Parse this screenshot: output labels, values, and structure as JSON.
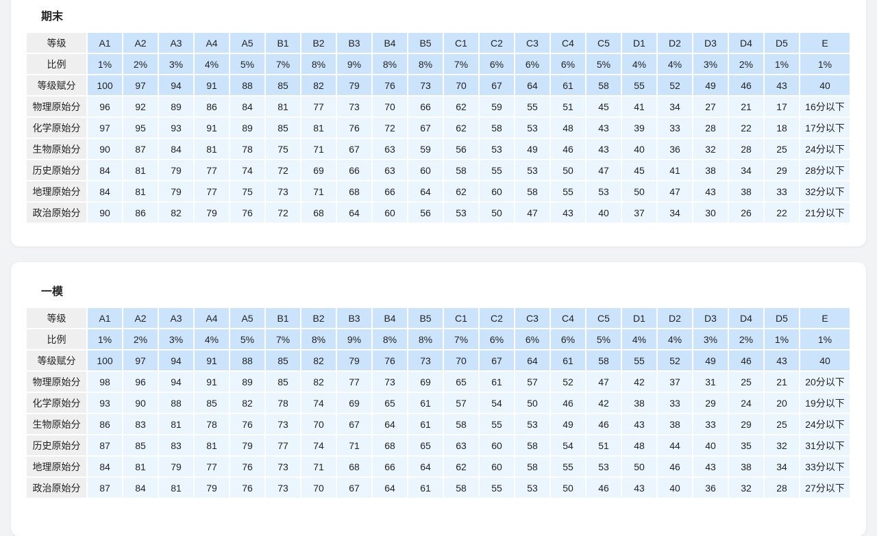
{
  "tables": [
    {
      "title": "期末",
      "header_rows": [
        {
          "label": "等级",
          "cells": [
            "A1",
            "A2",
            "A3",
            "A4",
            "A5",
            "B1",
            "B2",
            "B3",
            "B4",
            "B5",
            "C1",
            "C2",
            "C3",
            "C4",
            "C5",
            "D1",
            "D2",
            "D3",
            "D4",
            "D5",
            "E"
          ]
        },
        {
          "label": "比例",
          "cells": [
            "1%",
            "2%",
            "3%",
            "4%",
            "5%",
            "7%",
            "8%",
            "9%",
            "8%",
            "8%",
            "7%",
            "6%",
            "6%",
            "6%",
            "5%",
            "4%",
            "4%",
            "3%",
            "2%",
            "1%",
            "1%"
          ]
        },
        {
          "label": "等级赋分",
          "cells": [
            "100",
            "97",
            "94",
            "91",
            "88",
            "85",
            "82",
            "79",
            "76",
            "73",
            "70",
            "67",
            "64",
            "61",
            "58",
            "55",
            "52",
            "49",
            "46",
            "43",
            "40"
          ]
        }
      ],
      "rows": [
        {
          "label": "物理原始分",
          "cells": [
            "96",
            "92",
            "89",
            "86",
            "84",
            "81",
            "77",
            "73",
            "70",
            "66",
            "62",
            "59",
            "55",
            "51",
            "45",
            "41",
            "34",
            "27",
            "21",
            "17",
            "16分以下"
          ]
        },
        {
          "label": "化学原始分",
          "cells": [
            "97",
            "95",
            "93",
            "91",
            "89",
            "85",
            "81",
            "76",
            "72",
            "67",
            "62",
            "58",
            "53",
            "48",
            "43",
            "39",
            "33",
            "28",
            "22",
            "18",
            "17分以下"
          ]
        },
        {
          "label": "生物原始分",
          "cells": [
            "90",
            "87",
            "84",
            "81",
            "78",
            "75",
            "71",
            "67",
            "63",
            "59",
            "56",
            "53",
            "49",
            "46",
            "43",
            "40",
            "36",
            "32",
            "28",
            "25",
            "24分以下"
          ]
        },
        {
          "label": "历史原始分",
          "cells": [
            "84",
            "81",
            "79",
            "77",
            "74",
            "72",
            "69",
            "66",
            "63",
            "60",
            "58",
            "55",
            "53",
            "50",
            "47",
            "45",
            "41",
            "38",
            "34",
            "29",
            "28分以下"
          ]
        },
        {
          "label": "地理原始分",
          "cells": [
            "84",
            "81",
            "79",
            "77",
            "75",
            "73",
            "71",
            "68",
            "66",
            "64",
            "62",
            "60",
            "58",
            "55",
            "53",
            "50",
            "47",
            "43",
            "38",
            "33",
            "32分以下"
          ]
        },
        {
          "label": "政治原始分",
          "cells": [
            "90",
            "86",
            "82",
            "79",
            "76",
            "72",
            "68",
            "64",
            "60",
            "56",
            "53",
            "50",
            "47",
            "43",
            "40",
            "37",
            "34",
            "30",
            "26",
            "22",
            "21分以下"
          ]
        }
      ]
    },
    {
      "title": "一模",
      "header_rows": [
        {
          "label": "等级",
          "cells": [
            "A1",
            "A2",
            "A3",
            "A4",
            "A5",
            "B1",
            "B2",
            "B3",
            "B4",
            "B5",
            "C1",
            "C2",
            "C3",
            "C4",
            "C5",
            "D1",
            "D2",
            "D3",
            "D4",
            "D5",
            "E"
          ]
        },
        {
          "label": "比例",
          "cells": [
            "1%",
            "2%",
            "3%",
            "4%",
            "5%",
            "7%",
            "8%",
            "9%",
            "8%",
            "8%",
            "7%",
            "6%",
            "6%",
            "6%",
            "5%",
            "4%",
            "4%",
            "3%",
            "2%",
            "1%",
            "1%"
          ]
        },
        {
          "label": "等级赋分",
          "cells": [
            "100",
            "97",
            "94",
            "91",
            "88",
            "85",
            "82",
            "79",
            "76",
            "73",
            "70",
            "67",
            "64",
            "61",
            "58",
            "55",
            "52",
            "49",
            "46",
            "43",
            "40"
          ]
        }
      ],
      "rows": [
        {
          "label": "物理原始分",
          "cells": [
            "98",
            "96",
            "94",
            "91",
            "89",
            "85",
            "82",
            "77",
            "73",
            "69",
            "65",
            "61",
            "57",
            "52",
            "47",
            "42",
            "37",
            "31",
            "25",
            "21",
            "20分以下"
          ]
        },
        {
          "label": "化学原始分",
          "cells": [
            "93",
            "90",
            "88",
            "85",
            "82",
            "78",
            "74",
            "69",
            "65",
            "61",
            "57",
            "54",
            "50",
            "46",
            "42",
            "38",
            "33",
            "29",
            "24",
            "20",
            "19分以下"
          ]
        },
        {
          "label": "生物原始分",
          "cells": [
            "86",
            "83",
            "81",
            "78",
            "76",
            "73",
            "70",
            "67",
            "64",
            "61",
            "58",
            "55",
            "53",
            "49",
            "46",
            "43",
            "38",
            "33",
            "29",
            "25",
            "24分以下"
          ]
        },
        {
          "label": "历史原始分",
          "cells": [
            "87",
            "85",
            "83",
            "81",
            "79",
            "77",
            "74",
            "71",
            "68",
            "65",
            "63",
            "60",
            "58",
            "54",
            "51",
            "48",
            "44",
            "40",
            "35",
            "32",
            "31分以下"
          ]
        },
        {
          "label": "地理原始分",
          "cells": [
            "84",
            "81",
            "79",
            "77",
            "76",
            "73",
            "71",
            "68",
            "66",
            "64",
            "62",
            "60",
            "58",
            "55",
            "53",
            "50",
            "46",
            "43",
            "38",
            "34",
            "33分以下"
          ]
        },
        {
          "label": "政治原始分",
          "cells": [
            "87",
            "84",
            "81",
            "79",
            "76",
            "73",
            "70",
            "67",
            "64",
            "61",
            "58",
            "55",
            "53",
            "50",
            "46",
            "43",
            "40",
            "36",
            "32",
            "28",
            "27分以下"
          ]
        }
      ]
    }
  ]
}
